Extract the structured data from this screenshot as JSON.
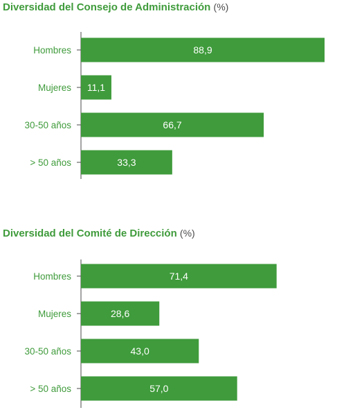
{
  "chart_data": [
    {
      "type": "bar",
      "orientation": "horizontal",
      "title": "Diversidad del Consejo de Administración",
      "unit": "(%)",
      "categories": [
        "Hombres",
        "Mujeres",
        "30-50 años",
        "> 50 años"
      ],
      "values": [
        88.9,
        11.1,
        66.7,
        33.3
      ],
      "value_labels": [
        "88,9",
        "11,1",
        "66,7",
        "33,3"
      ],
      "xlim": [
        0,
        88.9
      ],
      "grid": false,
      "bar_color": "#3f9b3b"
    },
    {
      "type": "bar",
      "orientation": "horizontal",
      "title": "Diversidad del Comité de Dirección",
      "unit": "(%)",
      "categories": [
        "Hombres",
        "Mujeres",
        "30-50 años",
        "> 50 años"
      ],
      "values": [
        71.4,
        28.6,
        43.0,
        57.0
      ],
      "value_labels": [
        "71,4",
        "28,6",
        "43,0",
        "57,0"
      ],
      "xlim": [
        0,
        88.9
      ],
      "grid": false,
      "bar_color": "#3f9b3b"
    }
  ]
}
